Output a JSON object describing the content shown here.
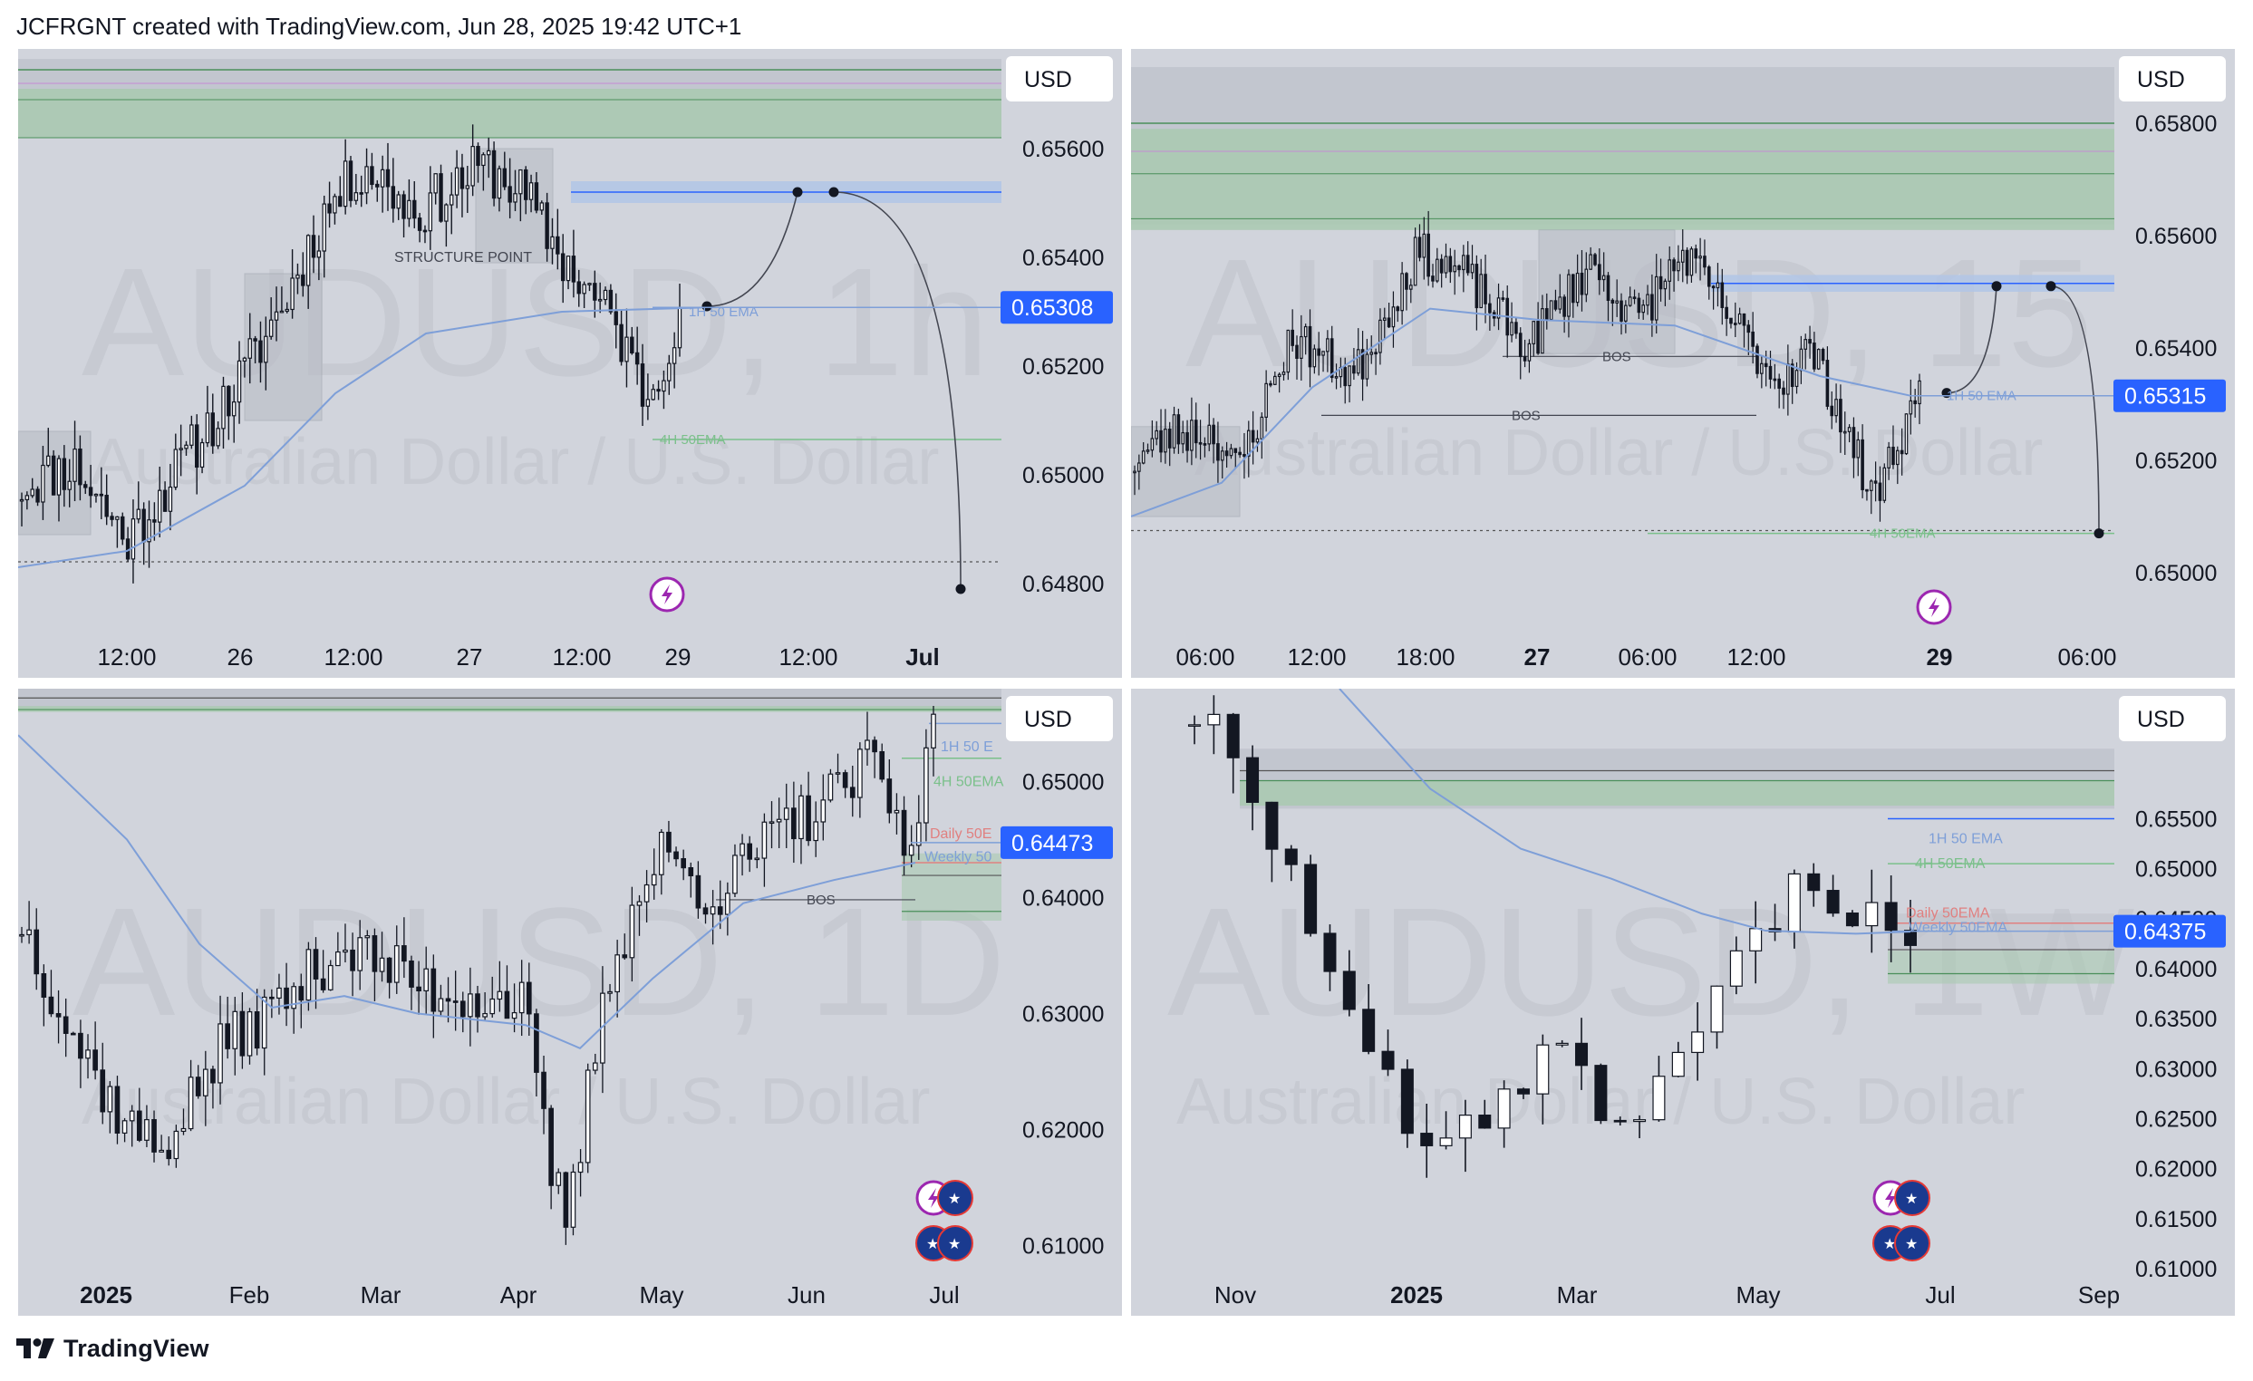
{
  "header": {
    "text": "JCFRGNT created with TradingView.com, Jun 28, 2025 19:42 UTC+1"
  },
  "footer": {
    "brand": "TradingView"
  },
  "colors": {
    "panel_bg": "#d1d4dc",
    "zone_gray": "#bfc3cc",
    "zone_green": "#a9c9b0",
    "zone_blue": "#b1c5e6",
    "ema_blue": "#7e9fd8",
    "ema_green": "#7bc08b",
    "ema_red": "#e08080",
    "price_tag": "#2962ff"
  },
  "chart_data": [
    {
      "type": "candlestick",
      "name": "top-left",
      "watermark_symbol": "AUDUSD, 1h",
      "watermark_desc": "Australian Dollar / U.S. Dollar",
      "currency": "USD",
      "ylim": [
        0.6475,
        0.6575
      ],
      "y_ticks": [
        "0.65600",
        "0.65400",
        "0.65200",
        "0.65000",
        "0.64800"
      ],
      "x_ticks": [
        "12:00",
        "26",
        "12:00",
        "27",
        "12:00",
        "29",
        "12:00",
        "Jul"
      ],
      "x_ticks_bold": [
        false,
        false,
        false,
        false,
        false,
        false,
        false,
        true
      ],
      "last_price": "0.65308",
      "annotations": [
        "STRUCTURE POINT",
        "1H 50 EMA",
        "4H 50EMA"
      ],
      "projection": [
        0.6531,
        0.6552,
        0.6552,
        0.6479
      ]
    },
    {
      "type": "candlestick",
      "name": "top-right",
      "watermark_symbol": "AUDUSD, 15",
      "watermark_desc": "Australian Dollar / U.S. Dollar",
      "currency": "USD",
      "ylim": [
        0.649,
        0.659
      ],
      "y_ticks": [
        "0.65800",
        "0.65600",
        "0.65400",
        "0.65200",
        "0.65000"
      ],
      "x_ticks": [
        "06:00",
        "12:00",
        "18:00",
        "27",
        "06:00",
        "12:00",
        "29",
        "06:00"
      ],
      "x_ticks_bold": [
        false,
        false,
        false,
        true,
        false,
        false,
        true,
        false
      ],
      "last_price": "0.65315",
      "annotations": [
        "BOS",
        "BOS",
        "1H 50 EMA",
        "4H 50EMA"
      ],
      "projection": [
        0.6532,
        0.6551,
        0.6551,
        0.6507
      ]
    },
    {
      "type": "candlestick",
      "name": "bottom-left",
      "watermark_symbol": "AUDUSD, 1D",
      "watermark_desc": "Australian Dollar / U.S. Dollar",
      "currency": "USD",
      "ylim": [
        0.608,
        0.658
      ],
      "y_ticks": [
        "0.65000",
        "0.64000",
        "0.63000",
        "0.62000",
        "0.61000"
      ],
      "x_ticks": [
        "2025",
        "Feb",
        "Mar",
        "Apr",
        "May",
        "Jun",
        "Jul"
      ],
      "x_ticks_bold": [
        true,
        false,
        false,
        false,
        false,
        false,
        false
      ],
      "last_price": "0.64473",
      "annotations": [
        "BOS",
        "1H 50 E",
        "4H 50EMA",
        "Daily 50E",
        "Weekly 50"
      ]
    },
    {
      "type": "candlestick",
      "name": "bottom-right",
      "watermark_symbol": "AUDUSD, 1W",
      "watermark_desc": "Australian Dollar / U.S. Dollar",
      "currency": "USD",
      "ylim": [
        0.61,
        0.668
      ],
      "y_ticks": [
        "0.65500",
        "0.65000",
        "0.64500",
        "0.64000",
        "0.63500",
        "0.63000",
        "0.62500",
        "0.62000",
        "0.61500",
        "0.61000"
      ],
      "x_ticks": [
        "Nov",
        "2025",
        "Mar",
        "May",
        "Jul",
        "Sep"
      ],
      "x_ticks_bold": [
        false,
        true,
        false,
        false,
        false,
        false
      ],
      "last_price": "0.64375",
      "annotations": [
        "1H 50 EMA",
        "4H 50EMA",
        "Daily 50EMA",
        "Weekly 50EMA"
      ]
    }
  ]
}
